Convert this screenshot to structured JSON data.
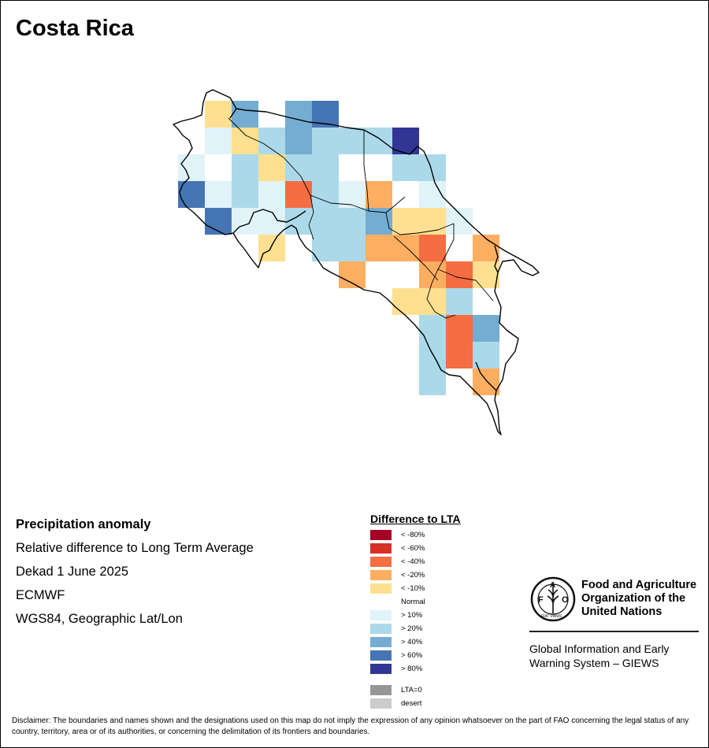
{
  "title": "Costa Rica",
  "info": {
    "heading": "Precipitation anomaly",
    "line1": "Relative difference to Long Term Average",
    "line2": "Dekad 1 June 2025",
    "line3": "ECMWF",
    "line4": "WGS84, Geographic Lat/Lon"
  },
  "legend": {
    "title": "Difference to LTA",
    "items": [
      {
        "label": "< -80%",
        "color": "#a50026"
      },
      {
        "label": "< -60%",
        "color": "#d73027"
      },
      {
        "label": "< -40%",
        "color": "#f46d43"
      },
      {
        "label": "< -20%",
        "color": "#fdae61"
      },
      {
        "label": "< -10%",
        "color": "#fee090"
      },
      {
        "label": "Normal",
        "color": "#ffffff"
      },
      {
        "label": "> 10%",
        "color": "#e0f3f8"
      },
      {
        "label": "> 20%",
        "color": "#abd9e9"
      },
      {
        "label": "> 40%",
        "color": "#74add1"
      },
      {
        "label": "> 60%",
        "color": "#4575b4"
      },
      {
        "label": "> 80%",
        "color": "#313695"
      },
      {
        "label": "LTA=0",
        "color": "#969696"
      },
      {
        "label": "desert",
        "color": "#cccccc"
      }
    ]
  },
  "organization": {
    "name_line1": "Food and Agriculture",
    "name_line2": "Organization of the",
    "name_line3": "United Nations",
    "logo_text": "FAO",
    "logo_motto": "FIAT PANIS",
    "system_line1": "Global Information and Early",
    "system_line2": "Warning System – GIEWS"
  },
  "disclaimer": "Disclaimer: The boundaries and names shown and the designations used on this map do not imply the expression of any opinion whatsoever on the part of FAO concerning the legal status of any country, territory, area or of its authorities, or concerning the delimitation of its frontiers and boundaries.",
  "anomaly_classes": [
    "< -40%",
    "< -20%",
    "< -10%",
    "> 10%",
    "> 20%",
    "> 40%",
    "> 60%",
    "> 80%"
  ]
}
